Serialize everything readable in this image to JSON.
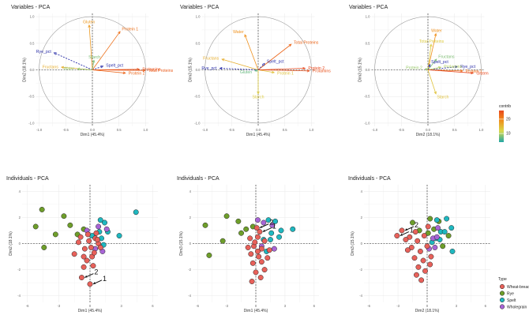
{
  "chart_data": [
    {
      "type": "scatter",
      "title": "Variables - PCA",
      "xlabel": "Dim1 (45.4%)",
      "ylabel": "Dim2 (18.1%)",
      "xlim": [
        -1,
        1
      ],
      "ylim": [
        -1,
        1
      ],
      "xticks": [
        -1.0,
        -0.5,
        0.0,
        0.5,
        1.0
      ],
      "yticks": [
        -1.0,
        -0.5,
        0.0,
        0.5,
        1.0
      ],
      "variables": [
        {
          "name": "Gluten",
          "x": -0.06,
          "y": 0.84,
          "contrib": 18
        },
        {
          "name": "Protein 1",
          "x": 0.52,
          "y": 0.72,
          "contrib": 22
        },
        {
          "name": "Rye_pct",
          "x": -0.72,
          "y": 0.32,
          "contrib": 4,
          "dashed": true
        },
        {
          "name": "Starch",
          "x": 0.03,
          "y": 0.18,
          "contrib": 8
        },
        {
          "name": "Spelt_pct",
          "x": 0.2,
          "y": 0.07,
          "contrib": 4,
          "dashed": true
        },
        {
          "name": "Fructans",
          "x": -0.58,
          "y": 0.05,
          "contrib": 16
        },
        {
          "name": "Water",
          "x": -0.28,
          "y": 0.02,
          "contrib": 9
        },
        {
          "name": "Prolamins",
          "x": 0.88,
          "y": 0.01,
          "contrib": 25
        },
        {
          "name": "Total Proteins",
          "x": 0.99,
          "y": -0.01,
          "contrib": 24
        },
        {
          "name": "Protein 2",
          "x": 0.62,
          "y": -0.06,
          "contrib": 23
        }
      ]
    },
    {
      "type": "scatter",
      "title": "Variables - PCA",
      "xlabel": "Dim1 (45.4%)",
      "ylabel": "Dim3 (15.1%)",
      "xlim": [
        -1,
        1
      ],
      "ylim": [
        -1,
        1
      ],
      "xticks": [
        -1.0,
        -0.5,
        0.0,
        0.5,
        1.0
      ],
      "yticks": [
        -1.0,
        -0.5,
        0.0,
        0.5,
        1.0
      ],
      "variables": [
        {
          "name": "Water",
          "x": -0.25,
          "y": 0.66,
          "contrib": 19
        },
        {
          "name": "Total Proteins",
          "x": 0.62,
          "y": 0.48,
          "contrib": 23
        },
        {
          "name": "Fructans",
          "x": -0.68,
          "y": 0.2,
          "contrib": 16
        },
        {
          "name": "Rye_pct",
          "x": -0.72,
          "y": 0.03,
          "contrib": 4,
          "dashed": true
        },
        {
          "name": "Spelt_pct",
          "x": 0.12,
          "y": 0.12,
          "contrib": 4,
          "dashed": true
        },
        {
          "name": "Gluten",
          "x": -0.06,
          "y": -0.02,
          "contrib": 7
        },
        {
          "name": "Protein 1",
          "x": 0.3,
          "y": -0.05,
          "contrib": 14
        },
        {
          "name": "Protein 2",
          "x": 0.88,
          "y": 0.03,
          "contrib": 26
        },
        {
          "name": "Prolamins",
          "x": 0.96,
          "y": -0.02,
          "contrib": 25
        },
        {
          "name": "Starch",
          "x": 0.0,
          "y": -0.45,
          "contrib": 13
        }
      ]
    },
    {
      "type": "scatter",
      "title": "Variables - PCA",
      "xlabel": "Dim2 (18.1%)",
      "ylabel": "Dim3 (15.1%)",
      "xlim": [
        -1,
        1
      ],
      "ylim": [
        -1,
        1
      ],
      "xticks": [
        -1.0,
        -0.5,
        0.0,
        0.5,
        1.0
      ],
      "yticks": [
        -1.0,
        -0.5,
        0.0,
        0.5,
        1.0
      ],
      "variables": [
        {
          "name": "Water",
          "x": 0.15,
          "y": 0.68,
          "contrib": 19
        },
        {
          "name": "Total Proteins",
          "x": 0.06,
          "y": 0.48,
          "contrib": 13
        },
        {
          "name": "Fructans",
          "x": 0.16,
          "y": 0.2,
          "contrib": 8
        },
        {
          "name": "Spelt_pct",
          "x": 0.04,
          "y": 0.1,
          "contrib": 4,
          "dashed": true
        },
        {
          "name": "Rye_pct",
          "x": 0.55,
          "y": 0.06,
          "contrib": 4,
          "dashed": true
        },
        {
          "name": "Prolamins",
          "x": 0.24,
          "y": 0.05,
          "contrib": 10
        },
        {
          "name": "Protein 2",
          "x": -0.05,
          "y": 0.02,
          "contrib": 9
        },
        {
          "name": "Protein 1",
          "x": 0.65,
          "y": -0.02,
          "contrib": 22
        },
        {
          "name": "Gluten",
          "x": 0.85,
          "y": -0.06,
          "contrib": 26
        },
        {
          "name": "Starch",
          "x": 0.15,
          "y": -0.45,
          "contrib": 14
        }
      ]
    },
    {
      "type": "scatter",
      "title": "Individuals - PCA",
      "xlabel": "Dim1 (45.4%)",
      "ylabel": "Dim2 (18.1%)",
      "xlim": [
        -6.5,
        6.5
      ],
      "ylim": [
        -4.5,
        4.5
      ],
      "xticks": [
        -6,
        -3,
        0,
        3,
        6
      ],
      "yticks": [
        -4,
        -2,
        0,
        2,
        4
      ],
      "points": [
        {
          "x": -5.2,
          "y": 1.3,
          "type": "Rye"
        },
        {
          "x": -4.6,
          "y": 2.6,
          "type": "Rye"
        },
        {
          "x": -2.5,
          "y": 2.1,
          "type": "Rye"
        },
        {
          "x": -3.3,
          "y": 0.7,
          "type": "Rye"
        },
        {
          "x": -4.4,
          "y": -0.3,
          "type": "Rye"
        },
        {
          "x": -1.9,
          "y": 1.4,
          "type": "Rye"
        },
        {
          "x": -1.2,
          "y": 0.7,
          "type": "Rye"
        },
        {
          "x": -0.6,
          "y": 1.1,
          "type": "Rye"
        },
        {
          "x": 1.0,
          "y": 1.8,
          "type": "Spelt"
        },
        {
          "x": 1.4,
          "y": 1.6,
          "type": "Spelt"
        },
        {
          "x": 4.4,
          "y": 2.4,
          "type": "Spelt"
        },
        {
          "x": 1.7,
          "y": 0.9,
          "type": "Spelt"
        },
        {
          "x": 1.1,
          "y": 0.4,
          "type": "Spelt"
        },
        {
          "x": 1.3,
          "y": -0.1,
          "type": "Spelt"
        },
        {
          "x": 0.9,
          "y": 0.9,
          "type": "Spelt"
        },
        {
          "x": 2.8,
          "y": 0.6,
          "type": "Spelt"
        },
        {
          "x": 0.2,
          "y": 0.6,
          "type": "Spelt"
        },
        {
          "x": 1.6,
          "y": 1.1,
          "type": "Wholegrain"
        },
        {
          "x": 0.8,
          "y": 1.3,
          "type": "Wholegrain"
        },
        {
          "x": 0.5,
          "y": -0.4,
          "type": "Wholegrain"
        },
        {
          "x": 1.2,
          "y": -0.6,
          "type": "Wholegrain"
        },
        {
          "x": -0.3,
          "y": 1.0,
          "type": "Wholegrain"
        },
        {
          "x": 0.0,
          "y": -3.1,
          "type": "Wheat-bread",
          "label": "1"
        },
        {
          "x": -0.8,
          "y": -2.6,
          "type": "Wheat-bread",
          "label": "2"
        },
        {
          "x": -0.6,
          "y": -1.8,
          "type": "Wheat-bread"
        },
        {
          "x": 0.3,
          "y": -1.7,
          "type": "Wheat-bread"
        },
        {
          "x": -0.6,
          "y": -1.0,
          "type": "Wheat-bread"
        },
        {
          "x": 0.2,
          "y": -1.0,
          "type": "Wheat-bread"
        },
        {
          "x": -0.5,
          "y": -0.4,
          "type": "Wheat-bread"
        },
        {
          "x": 0.1,
          "y": -0.3,
          "type": "Wheat-bread"
        },
        {
          "x": -1.1,
          "y": 0.1,
          "type": "Wheat-bread"
        },
        {
          "x": -0.1,
          "y": 0.2,
          "type": "Wheat-bread"
        },
        {
          "x": 0.5,
          "y": 0.4,
          "type": "Wheat-bread"
        },
        {
          "x": 0.8,
          "y": 0.0,
          "type": "Wheat-bread"
        },
        {
          "x": -1.5,
          "y": -0.8,
          "type": "Wheat-bread"
        },
        {
          "x": 0.6,
          "y": 0.8,
          "type": "Wheat-bread"
        },
        {
          "x": -0.2,
          "y": 0.7,
          "type": "Wheat-bread"
        },
        {
          "x": 1.0,
          "y": -0.3,
          "type": "Wheat-bread"
        },
        {
          "x": -0.9,
          "y": 0.5,
          "type": "Wheat-bread"
        },
        {
          "x": 0.4,
          "y": -0.7,
          "type": "Wheat-bread"
        },
        {
          "x": -0.3,
          "y": -1.3,
          "type": "Wheat-bread"
        },
        {
          "x": 0.7,
          "y": 0.3,
          "type": "Wheat-bread"
        }
      ]
    },
    {
      "type": "scatter",
      "title": "Individuals - PCA",
      "xlabel": "Dim1 (45.4%)",
      "ylabel": "Dim3 (15.1%)",
      "xlim": [
        -6.5,
        6.5
      ],
      "ylim": [
        -4.5,
        4.5
      ],
      "xticks": [
        -6,
        -3,
        0,
        3,
        6
      ],
      "yticks": [
        -4,
        -2,
        0,
        2,
        4
      ],
      "points": [
        {
          "x": -5.2,
          "y": 1.4,
          "type": "Rye"
        },
        {
          "x": -3.0,
          "y": 2.1,
          "type": "Rye"
        },
        {
          "x": -1.8,
          "y": 1.7,
          "type": "Rye"
        },
        {
          "x": -1.5,
          "y": 0.8,
          "type": "Rye"
        },
        {
          "x": -4.8,
          "y": -0.9,
          "type": "Rye"
        },
        {
          "x": -1.0,
          "y": 1.1,
          "type": "Rye"
        },
        {
          "x": -0.3,
          "y": 1.3,
          "type": "Rye"
        },
        {
          "x": -3.4,
          "y": 0.2,
          "type": "Rye"
        },
        {
          "x": 1.3,
          "y": 1.8,
          "type": "Spelt"
        },
        {
          "x": 2.0,
          "y": 1.7,
          "type": "Spelt"
        },
        {
          "x": 3.8,
          "y": 1.1,
          "type": "Spelt"
        },
        {
          "x": 1.6,
          "y": 0.8,
          "type": "Spelt"
        },
        {
          "x": 2.4,
          "y": 0.5,
          "type": "Spelt"
        },
        {
          "x": 1.1,
          "y": -0.6,
          "type": "Spelt"
        },
        {
          "x": 0.8,
          "y": 0.3,
          "type": "Spelt"
        },
        {
          "x": 2.6,
          "y": 1.0,
          "type": "Spelt"
        },
        {
          "x": 1.5,
          "y": 0.3,
          "type": "Spelt"
        },
        {
          "x": 1.7,
          "y": 1.4,
          "type": "Wholegrain"
        },
        {
          "x": 0.8,
          "y": 1.6,
          "type": "Wholegrain"
        },
        {
          "x": 1.9,
          "y": -0.4,
          "type": "Wholegrain"
        },
        {
          "x": 0.2,
          "y": 1.8,
          "type": "Wholegrain"
        },
        {
          "x": 0.6,
          "y": -0.2,
          "type": "Wholegrain"
        },
        {
          "x": 0.4,
          "y": 0.9,
          "type": "Wheat-bread",
          "label": "1"
        },
        {
          "x": 0.1,
          "y": 1.2,
          "type": "Wheat-bread",
          "label": "2"
        },
        {
          "x": -0.6,
          "y": 0.4,
          "type": "Wheat-bread"
        },
        {
          "x": 0.2,
          "y": 0.5,
          "type": "Wheat-bread"
        },
        {
          "x": -0.2,
          "y": -0.2,
          "type": "Wheat-bread"
        },
        {
          "x": 0.6,
          "y": -0.4,
          "type": "Wheat-bread"
        },
        {
          "x": -0.5,
          "y": -0.8,
          "type": "Wheat-bread"
        },
        {
          "x": 0.3,
          "y": -1.0,
          "type": "Wheat-bread"
        },
        {
          "x": -0.3,
          "y": -1.5,
          "type": "Wheat-bread"
        },
        {
          "x": 0.6,
          "y": -1.4,
          "type": "Wheat-bread"
        },
        {
          "x": 0.0,
          "y": -2.2,
          "type": "Wheat-bread"
        },
        {
          "x": 0.9,
          "y": -2.0,
          "type": "Wheat-bread"
        },
        {
          "x": 0.5,
          "y": -2.6,
          "type": "Wheat-bread"
        },
        {
          "x": -0.8,
          "y": -0.3,
          "type": "Wheat-bread"
        },
        {
          "x": 1.2,
          "y": -1.1,
          "type": "Wheat-bread"
        },
        {
          "x": -0.1,
          "y": 0.1,
          "type": "Wheat-bread"
        },
        {
          "x": 0.9,
          "y": 0.2,
          "type": "Wheat-bread"
        },
        {
          "x": -0.4,
          "y": -2.9,
          "type": "Wheat-bread"
        },
        {
          "x": 1.4,
          "y": -0.5,
          "type": "Wheat-bread"
        },
        {
          "x": 0.2,
          "y": -0.6,
          "type": "Wheat-bread"
        }
      ]
    },
    {
      "type": "scatter",
      "title": "Individuals - PCA",
      "xlabel": "Dim2 (18.1%)",
      "ylabel": "Dim3 (15.1%)",
      "xlim": [
        -6.5,
        6.5
      ],
      "ylim": [
        -4.5,
        4.5
      ],
      "xticks": [
        -6,
        -3,
        0,
        3,
        6
      ],
      "yticks": [
        -4,
        -2,
        0,
        2,
        4
      ],
      "points": [
        {
          "x": -1.5,
          "y": 1.6,
          "type": "Rye"
        },
        {
          "x": 0.3,
          "y": 1.9,
          "type": "Rye"
        },
        {
          "x": 1.2,
          "y": 1.7,
          "type": "Rye"
        },
        {
          "x": 0.7,
          "y": 1.1,
          "type": "Rye"
        },
        {
          "x": -0.8,
          "y": 1.0,
          "type": "Rye"
        },
        {
          "x": 2.2,
          "y": 0.6,
          "type": "Rye"
        },
        {
          "x": 0.1,
          "y": 0.8,
          "type": "Rye"
        },
        {
          "x": 1.6,
          "y": -0.2,
          "type": "Rye"
        },
        {
          "x": 2.0,
          "y": 1.9,
          "type": "Spelt"
        },
        {
          "x": 1.0,
          "y": 1.8,
          "type": "Spelt"
        },
        {
          "x": 2.5,
          "y": 1.2,
          "type": "Spelt"
        },
        {
          "x": 1.4,
          "y": 0.9,
          "type": "Spelt"
        },
        {
          "x": 0.9,
          "y": 0.4,
          "type": "Spelt"
        },
        {
          "x": 0.5,
          "y": 0.1,
          "type": "Spelt"
        },
        {
          "x": 1.8,
          "y": 0.9,
          "type": "Spelt"
        },
        {
          "x": 2.6,
          "y": -0.6,
          "type": "Spelt"
        },
        {
          "x": 1.3,
          "y": 0.3,
          "type": "Spelt"
        },
        {
          "x": 0.6,
          "y": 0.4,
          "type": "Wholegrain"
        },
        {
          "x": 1.0,
          "y": 0.5,
          "type": "Wholegrain"
        },
        {
          "x": 0.8,
          "y": -0.3,
          "type": "Wholegrain"
        },
        {
          "x": 0.2,
          "y": -0.4,
          "type": "Wholegrain"
        },
        {
          "x": 1.1,
          "y": 1.2,
          "type": "Wholegrain"
        },
        {
          "x": -3.1,
          "y": 0.6,
          "type": "Wheat-bread",
          "label": "1"
        },
        {
          "x": -2.6,
          "y": 1.0,
          "type": "Wheat-bread",
          "label": "2"
        },
        {
          "x": -1.8,
          "y": 0.5,
          "type": "Wheat-bread"
        },
        {
          "x": -1.2,
          "y": 0.9,
          "type": "Wheat-bread"
        },
        {
          "x": -2.2,
          "y": 0.3,
          "type": "Wheat-bread"
        },
        {
          "x": -1.0,
          "y": 0.2,
          "type": "Wheat-bread"
        },
        {
          "x": -1.6,
          "y": -0.3,
          "type": "Wheat-bread"
        },
        {
          "x": -0.7,
          "y": -0.6,
          "type": "Wheat-bread"
        },
        {
          "x": -1.3,
          "y": -1.1,
          "type": "Wheat-bread"
        },
        {
          "x": -0.4,
          "y": -1.3,
          "type": "Wheat-bread"
        },
        {
          "x": -0.9,
          "y": -1.8,
          "type": "Wheat-bread"
        },
        {
          "x": -0.2,
          "y": -2.1,
          "type": "Wheat-bread"
        },
        {
          "x": -0.6,
          "y": -2.8,
          "type": "Wheat-bread"
        },
        {
          "x": 0.0,
          "y": -0.2,
          "type": "Wheat-bread"
        },
        {
          "x": -0.3,
          "y": 0.6,
          "type": "Wheat-bread"
        },
        {
          "x": 0.4,
          "y": -1.0,
          "type": "Wheat-bread"
        },
        {
          "x": -2.0,
          "y": -0.5,
          "type": "Wheat-bread"
        },
        {
          "x": 0.3,
          "y": -1.6,
          "type": "Wheat-bread"
        },
        {
          "x": -1.1,
          "y": -2.4,
          "type": "Wheat-bread"
        },
        {
          "x": 0.1,
          "y": 1.3,
          "type": "Wheat-bread"
        }
      ]
    }
  ],
  "contrib_legend": {
    "title": "contrib",
    "ticks": [
      10,
      20
    ],
    "range": [
      4,
      26
    ],
    "colors": [
      "#21a6a6",
      "#d9d94a",
      "#f08c1a",
      "#e8481e"
    ]
  },
  "type_legend": {
    "title": "Type",
    "items": [
      {
        "label": "Wheat-bread",
        "color": "#e8615a"
      },
      {
        "label": "Rye",
        "color": "#6e9e2a"
      },
      {
        "label": "Spelt",
        "color": "#1fb8c0"
      },
      {
        "label": "Wholegrain",
        "color": "#a865d6"
      }
    ]
  }
}
